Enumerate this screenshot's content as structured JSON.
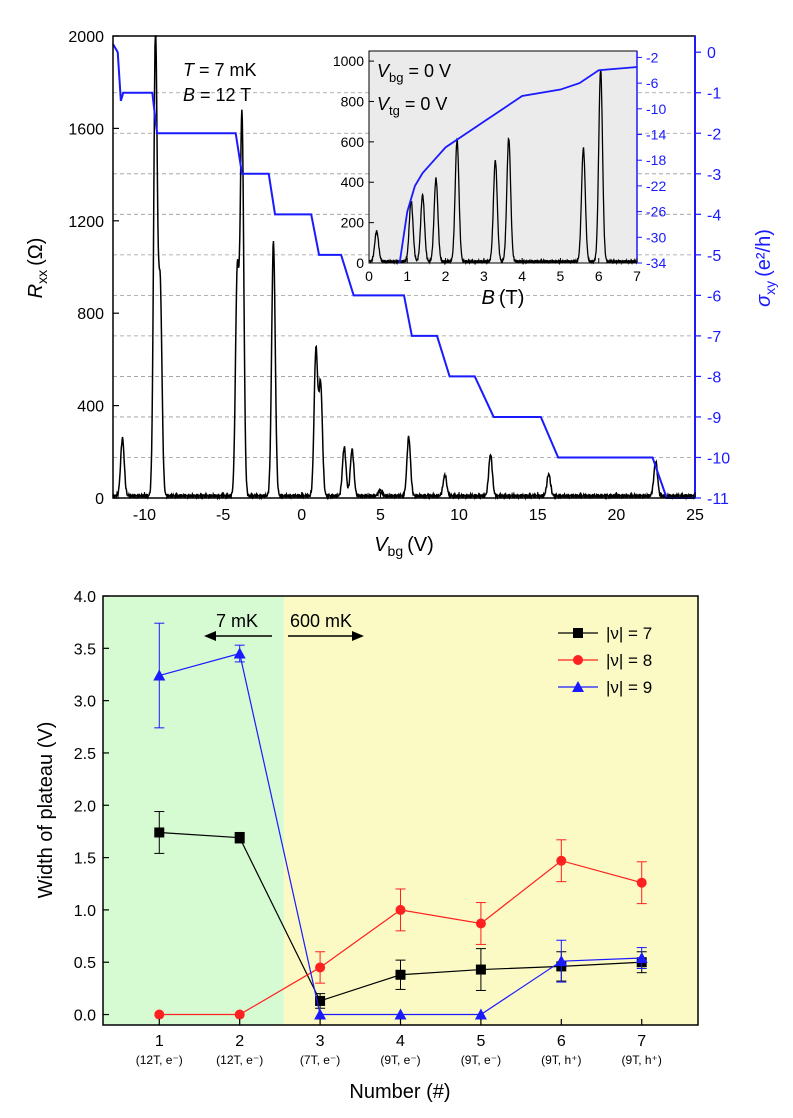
{
  "chart_data": [
    {
      "type": "line",
      "xlabel": "V",
      "xlabel_sub": "bg",
      "xlabel_unit": "(V)",
      "ylabel": "R",
      "ylabel_sub": "xx",
      "ylabel_unit": "(Ω)",
      "y2label": "σ",
      "y2label_sub": "xy",
      "y2label_unit": "(e²/h)",
      "xlim": [
        -12,
        25
      ],
      "ylim": [
        0,
        2000
      ],
      "y2lim": [
        -11,
        0.4
      ],
      "xticks": [
        "-10",
        "-5",
        "0",
        "5",
        "10",
        "15",
        "20",
        "25"
      ],
      "yticks": [
        "0",
        "400",
        "800",
        "1200",
        "1600",
        "2000"
      ],
      "y2ticks": [
        "0",
        "-1",
        "-2",
        "-3",
        "-4",
        "-5",
        "-6",
        "-7",
        "-8",
        "-9",
        "-10",
        "-11"
      ],
      "annotation_T": "T",
      "annotation_T_value": " = 7 mK",
      "annotation_B": "B",
      "annotation_B_value": " = 12 T",
      "grid": "dashed horizontal at sigma_xy plateaus",
      "series": [
        {
          "axis": "left",
          "color": "#000000",
          "peaks": [
            {
              "x": -11.4,
              "h": 250
            },
            {
              "x": -9.3,
              "h": 2000
            },
            {
              "x": -9.0,
              "h": 900
            },
            {
              "x": -4.1,
              "h": 960
            },
            {
              "x": -3.8,
              "h": 1640
            },
            {
              "x": -1.8,
              "h": 1100
            },
            {
              "x": 0.9,
              "h": 630
            },
            {
              "x": 1.2,
              "h": 480
            },
            {
              "x": 2.7,
              "h": 210
            },
            {
              "x": 3.2,
              "h": 200
            },
            {
              "x": 5.0,
              "h": 25
            },
            {
              "x": 6.8,
              "h": 255
            },
            {
              "x": 9.1,
              "h": 90
            },
            {
              "x": 12.0,
              "h": 180
            },
            {
              "x": 15.7,
              "h": 95
            },
            {
              "x": 22.5,
              "h": 150
            }
          ]
        },
        {
          "axis": "right",
          "color": "#1a1aff",
          "x": [
            -12,
            -11.7,
            -11.5,
            -11.35,
            -9.5,
            -9.2,
            -4.2,
            -3.8,
            -2.1,
            -1.7,
            0.6,
            1.1,
            2.5,
            3.3,
            6.5,
            7.0,
            8.6,
            9.4,
            11.0,
            12.2,
            15.2,
            16.3,
            22.3,
            23.2,
            25
          ],
          "y": [
            0.2,
            0.0,
            -1.2,
            -1.0,
            -1.0,
            -2.0,
            -2.0,
            -3.0,
            -3.0,
            -4.0,
            -4.0,
            -5.0,
            -5.0,
            -6.0,
            -6.0,
            -7.0,
            -7.0,
            -8.0,
            -8.0,
            -9.0,
            -9.0,
            -10.0,
            -10.0,
            -11.0,
            -11.0
          ]
        }
      ]
    },
    {
      "type": "line",
      "inset": true,
      "xlabel": "B",
      "xlabel_unit": "(T)",
      "xlim": [
        0,
        7
      ],
      "ylim": [
        0,
        1050
      ],
      "y2lim": [
        -34,
        -1
      ],
      "xticks": [
        "0",
        "1",
        "2",
        "3",
        "4",
        "5",
        "6",
        "7"
      ],
      "yticks": [
        "0",
        "200",
        "400",
        "600",
        "800",
        "1000"
      ],
      "y2ticks": [
        "-2",
        "-6",
        "-10",
        "-14",
        "-18",
        "-22",
        "-26",
        "-30",
        "-34"
      ],
      "annotation_vbg": "V",
      "annotation_vbg_sub": "bg",
      "annotation_vbg_value": " = 0 V",
      "annotation_vtg": "V",
      "annotation_vtg_sub": "tg",
      "annotation_vtg_value": " = 0 V",
      "series": [
        {
          "axis": "left",
          "color": "#000000",
          "peaks": [
            {
              "x": 0.2,
              "h": 150
            },
            {
              "x": 1.1,
              "h": 300
            },
            {
              "x": 1.4,
              "h": 330
            },
            {
              "x": 1.75,
              "h": 410
            },
            {
              "x": 2.3,
              "h": 600
            },
            {
              "x": 3.3,
              "h": 500
            },
            {
              "x": 3.65,
              "h": 610
            },
            {
              "x": 5.6,
              "h": 560
            },
            {
              "x": 6.05,
              "h": 950
            }
          ]
        },
        {
          "axis": "right",
          "color": "#1a1aff",
          "x": [
            0.8,
            0.9,
            1.0,
            1.2,
            1.4,
            1.7,
            2.0,
            2.5,
            3.0,
            3.5,
            4.0,
            5.0,
            5.5,
            6.0,
            7.0
          ],
          "y": [
            -34,
            -30,
            -26,
            -22,
            -20,
            -18,
            -16,
            -14,
            -12,
            -10,
            -8,
            -7,
            -6,
            -4,
            -3.5
          ]
        }
      ]
    },
    {
      "type": "line",
      "xlabel": "Number (#)",
      "ylabel": "Width of plateau (V)",
      "xlim": [
        0.3,
        7.7
      ],
      "ylim": [
        -0.1,
        4.0
      ],
      "categories": [
        "1",
        "2",
        "3",
        "4",
        "5",
        "6",
        "7"
      ],
      "subcategories": [
        "(12T, e⁻)",
        "(12T, e⁻)",
        "(7T, e⁻)",
        "(9T, e⁻)",
        "(9T, e⁻)",
        "(9T, h⁺)",
        "(9T, h⁺)"
      ],
      "yticks": [
        "0.0",
        "0.5",
        "1.0",
        "1.5",
        "2.0",
        "2.5",
        "3.0",
        "3.5",
        "4.0"
      ],
      "regions": [
        {
          "from": 0.3,
          "to": 2.55,
          "color": "#d6fbd3"
        },
        {
          "from": 2.55,
          "to": 7.7,
          "color": "#fbfac4"
        }
      ],
      "annotation_left": "7 mK",
      "annotation_right": "600 mK",
      "legend": "top-right",
      "series": [
        {
          "name": "|ν| = 7",
          "color": "#000000",
          "marker": "square",
          "values": [
            1.74,
            1.69,
            0.13,
            0.38,
            0.43,
            0.46,
            0.5
          ],
          "errors": [
            0.2,
            0.05,
            0.07,
            0.14,
            0.2,
            0.14,
            0.1
          ]
        },
        {
          "name": "|ν| = 8",
          "color": "#ff2020",
          "marker": "circle",
          "values": [
            0.0,
            0.0,
            0.45,
            1.0,
            0.87,
            1.47,
            1.26
          ],
          "errors": [
            0.0,
            0.0,
            0.15,
            0.2,
            0.2,
            0.2,
            0.2
          ]
        },
        {
          "name": "|ν| = 9",
          "color": "#1a1aff",
          "marker": "triangle",
          "values": [
            3.24,
            3.45,
            0.0,
            0.0,
            0.0,
            0.51,
            0.54
          ],
          "errors": [
            0.5,
            0.08,
            0.0,
            0.0,
            0.0,
            0.2,
            0.1
          ]
        }
      ]
    }
  ]
}
